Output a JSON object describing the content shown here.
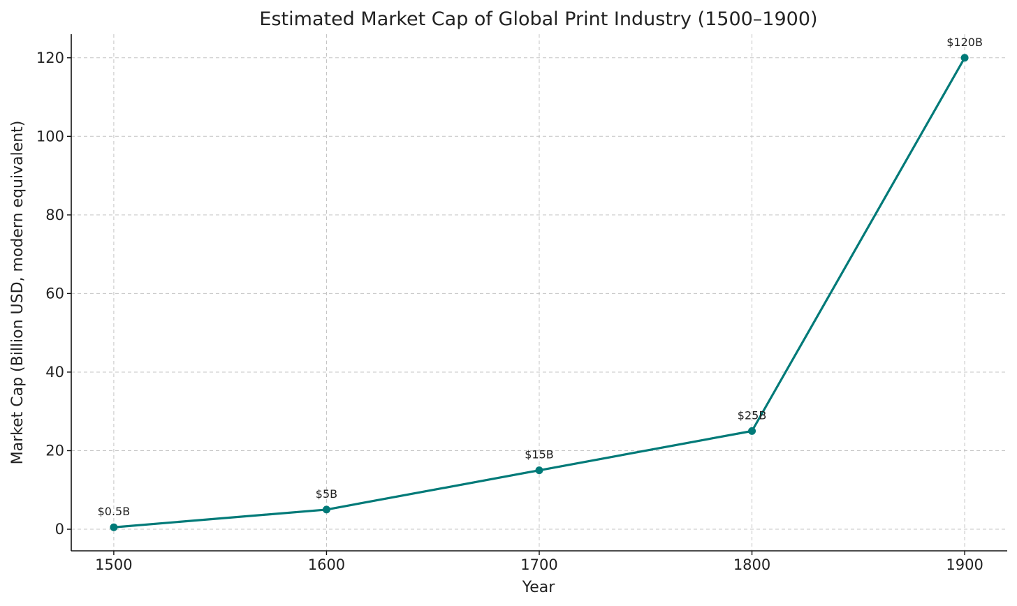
{
  "chart_data": {
    "type": "line",
    "title": "Estimated Market Cap of Global Print Industry (1500–1900)",
    "xlabel": "Year",
    "ylabel": "Market Cap (Billion USD, modern equivalent)",
    "x": [
      1500,
      1600,
      1700,
      1800,
      1900
    ],
    "series": [
      {
        "values": [
          0.5,
          5,
          15,
          25,
          120
        ],
        "data_labels": [
          "$0.5B",
          "$5B",
          "$15B",
          "$25B",
          "$120B"
        ],
        "color": "#007a78",
        "marker": "circle"
      }
    ],
    "xlim": [
      1480,
      1920
    ],
    "ylim": [
      -5.5,
      126
    ],
    "xticks": [
      1500,
      1600,
      1700,
      1800,
      1900
    ],
    "yticks": [
      0,
      20,
      40,
      60,
      80,
      100,
      120
    ],
    "grid": true,
    "legend": "none"
  }
}
